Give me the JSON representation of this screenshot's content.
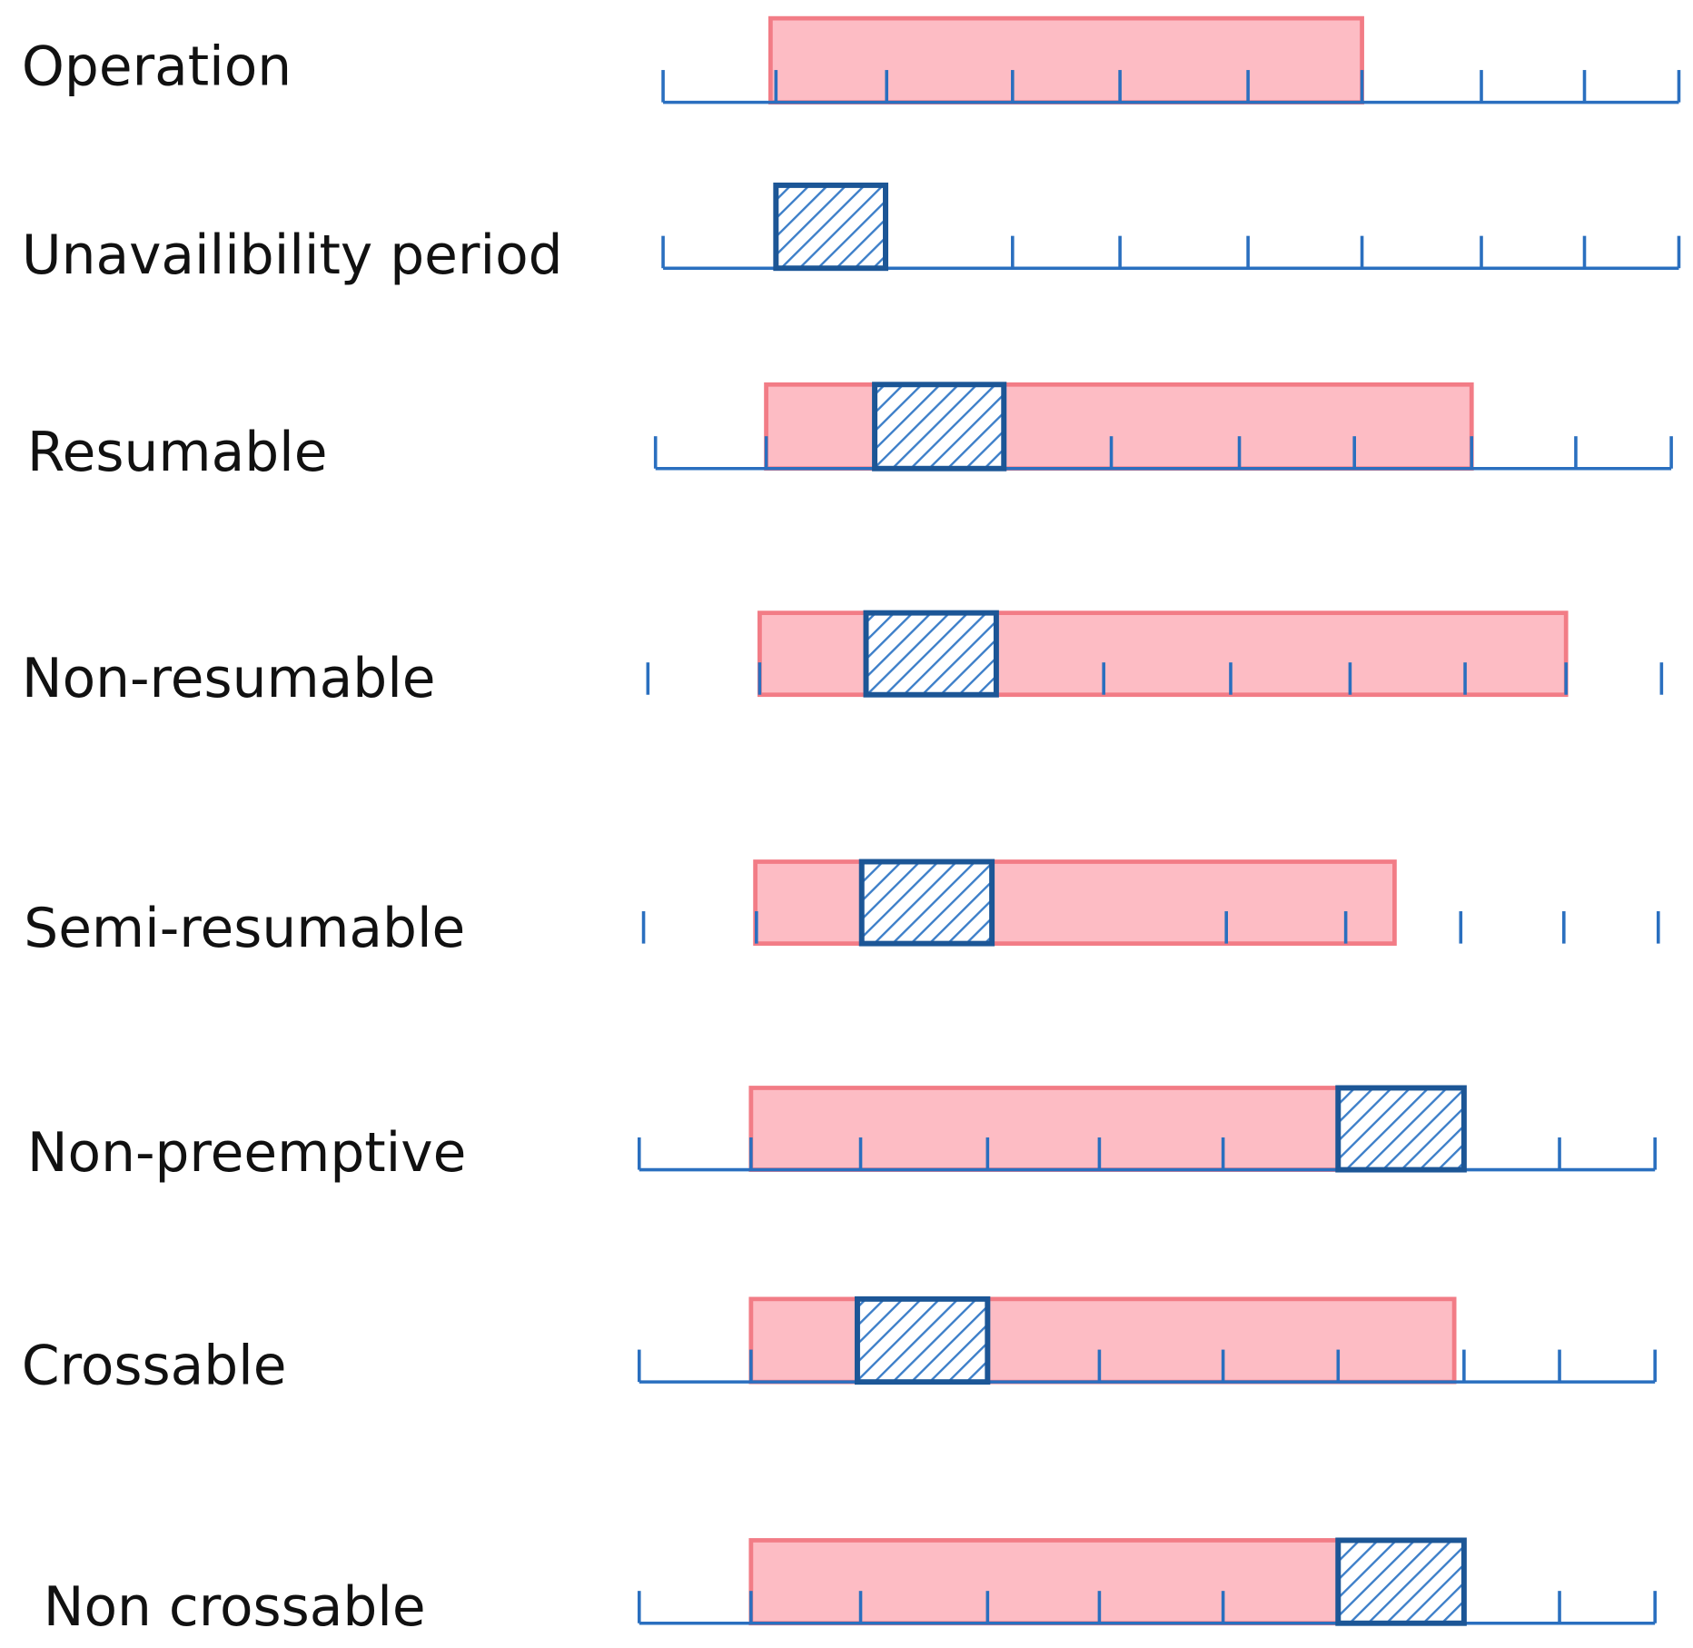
{
  "rows": [
    {
      "label": "Operation"
    },
    {
      "label": "Unavailibility period"
    },
    {
      "label": "Resumable"
    },
    {
      "label": "Non-resumable"
    },
    {
      "label": "Semi-resumable"
    },
    {
      "label": "Non-preemptive"
    },
    {
      "label": "Crossable"
    },
    {
      "label": "Non crossable"
    }
  ]
}
